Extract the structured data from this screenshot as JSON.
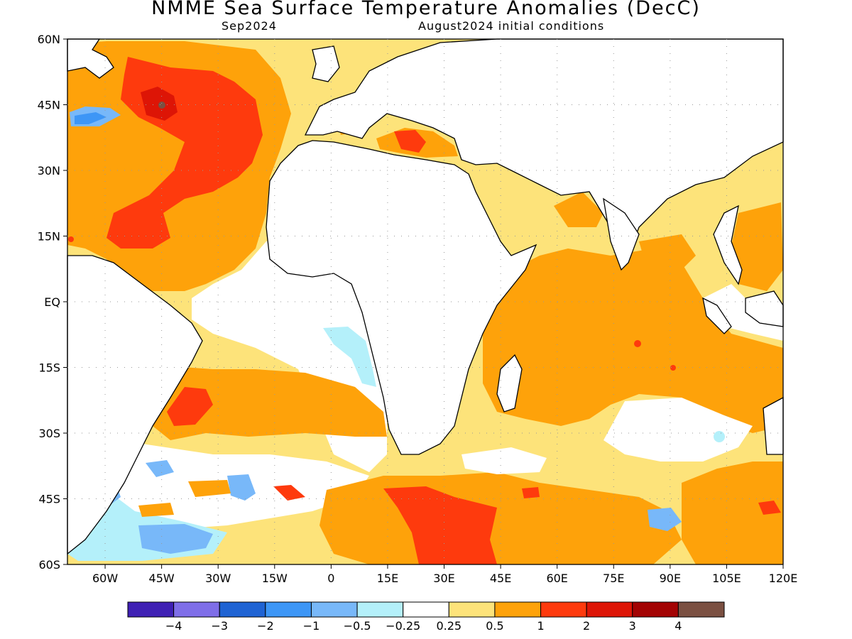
{
  "title": "NMME Sea Surface Temperature Anomalies (DecC)",
  "subtitle_left": "Sep2024",
  "subtitle_right": "August2024 initial conditions",
  "map": {
    "lon_range": [
      -70,
      120
    ],
    "lat_range": [
      -60,
      60
    ],
    "lat_ticks": [
      {
        "v": 60,
        "label": "60N"
      },
      {
        "v": 45,
        "label": "45N"
      },
      {
        "v": 30,
        "label": "30N"
      },
      {
        "v": 15,
        "label": "15N"
      },
      {
        "v": 0,
        "label": "EQ"
      },
      {
        "v": -15,
        "label": "15S"
      },
      {
        "v": -30,
        "label": "30S"
      },
      {
        "v": -45,
        "label": "45S"
      },
      {
        "v": -60,
        "label": "60S"
      }
    ],
    "lon_ticks": [
      {
        "v": -60,
        "label": "60W"
      },
      {
        "v": -45,
        "label": "45W"
      },
      {
        "v": -30,
        "label": "30W"
      },
      {
        "v": -15,
        "label": "15W"
      },
      {
        "v": 0,
        "label": "0"
      },
      {
        "v": 15,
        "label": "15E"
      },
      {
        "v": 30,
        "label": "30E"
      },
      {
        "v": 45,
        "label": "45E"
      },
      {
        "v": 60,
        "label": "60E"
      },
      {
        "v": 75,
        "label": "75E"
      },
      {
        "v": 90,
        "label": "90E"
      },
      {
        "v": 105,
        "label": "105E"
      },
      {
        "v": 120,
        "label": "120E"
      }
    ],
    "grid": "dotted"
  },
  "colorbar": {
    "colors": [
      "#3f20b4",
      "#7f6ee8",
      "#1f63d3",
      "#3d96f6",
      "#78b8f9",
      "#b4f0fa",
      "#ffffff",
      "#fde37a",
      "#fea20a",
      "#fe3a0d",
      "#dd1506",
      "#a30303",
      "#7b5042"
    ],
    "labels": [
      "−4",
      "−3",
      "−2",
      "−1",
      "−0.5",
      "−0.25",
      "0.25",
      "0.5",
      "1",
      "2",
      "3",
      "4"
    ]
  }
}
